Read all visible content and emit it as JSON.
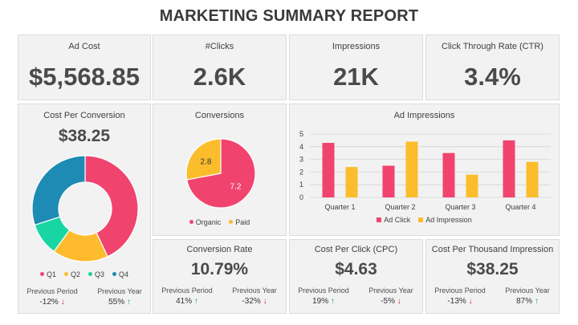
{
  "title": "MARKETING SUMMARY REPORT",
  "kpis": {
    "ad_cost": {
      "label": "Ad Cost",
      "value": "$5,568.85"
    },
    "clicks": {
      "label": "#Clicks",
      "value": "2.6K"
    },
    "impressions": {
      "label": "Impressions",
      "value": "21K"
    },
    "ctr": {
      "label": "Click Through Rate (CTR)",
      "value": "3.4%"
    }
  },
  "cost_per_conversion": {
    "label": "Cost Per Conversion",
    "value": "$38.25",
    "prev_period_label": "Previous Period",
    "prev_period_value": "-12%",
    "prev_year_label": "Previous Year",
    "prev_year_value": "55%"
  },
  "conversions": {
    "label": "Conversions"
  },
  "ad_impressions": {
    "label": "Ad Impressions"
  },
  "conversion_rate": {
    "label": "Conversion Rate",
    "value": "10.79%",
    "prev_period_label": "Previous Period",
    "prev_period_value": "41%",
    "prev_year_label": "Previous Year",
    "prev_year_value": "-32%"
  },
  "cpc": {
    "label": "Cost Per Click (CPC)",
    "value": "$4.63",
    "prev_period_label": "Previous Period",
    "prev_period_value": "19%",
    "prev_year_label": "Previous Year",
    "prev_year_value": "-5%"
  },
  "cpm": {
    "label": "Cost Per Thousand Impression",
    "value": "$38.25",
    "prev_period_label": "Previous Period",
    "prev_period_value": "-13%",
    "prev_year_label": "Previous Year",
    "prev_year_value": "87%"
  },
  "arrows": {
    "up": "↑",
    "down": "↓"
  },
  "colors": {
    "pink": "#f0446f",
    "yellow": "#fdbb2d",
    "teal": "#0aa5a5",
    "blue": "#1d8bb3",
    "green": "#18d6a3",
    "gold": "#fbbd2c"
  },
  "chart_data": [
    {
      "type": "pie",
      "variant": "donut",
      "categories": [
        "Q1",
        "Q2",
        "Q3",
        "Q4"
      ],
      "values": [
        43,
        17,
        10,
        30
      ],
      "colors": [
        "#f0446f",
        "#fdbb2d",
        "#18d6a3",
        "#1d8bb3"
      ],
      "title": "",
      "legend_position": "bottom"
    },
    {
      "type": "pie",
      "categories": [
        "Organic",
        "Paid"
      ],
      "values": [
        7.2,
        2.8
      ],
      "colors": [
        "#f0446f",
        "#fbbd2c"
      ],
      "title": "Conversions",
      "legend_position": "bottom"
    },
    {
      "type": "bar",
      "title": "Ad Impressions",
      "categories": [
        "Quarter 1",
        "Quarter 2",
        "Quarter 3",
        "Quarter 4"
      ],
      "series": [
        {
          "name": "Ad Click",
          "values": [
            4.3,
            2.5,
            3.5,
            4.5
          ],
          "color": "#f0446f"
        },
        {
          "name": "Ad Impression",
          "values": [
            2.4,
            4.4,
            1.8,
            2.8
          ],
          "color": "#fbbd2c"
        }
      ],
      "ylim": [
        0,
        5
      ],
      "yticks": [
        0,
        1,
        2,
        3,
        4,
        5
      ],
      "grid": true,
      "legend_position": "bottom"
    }
  ]
}
